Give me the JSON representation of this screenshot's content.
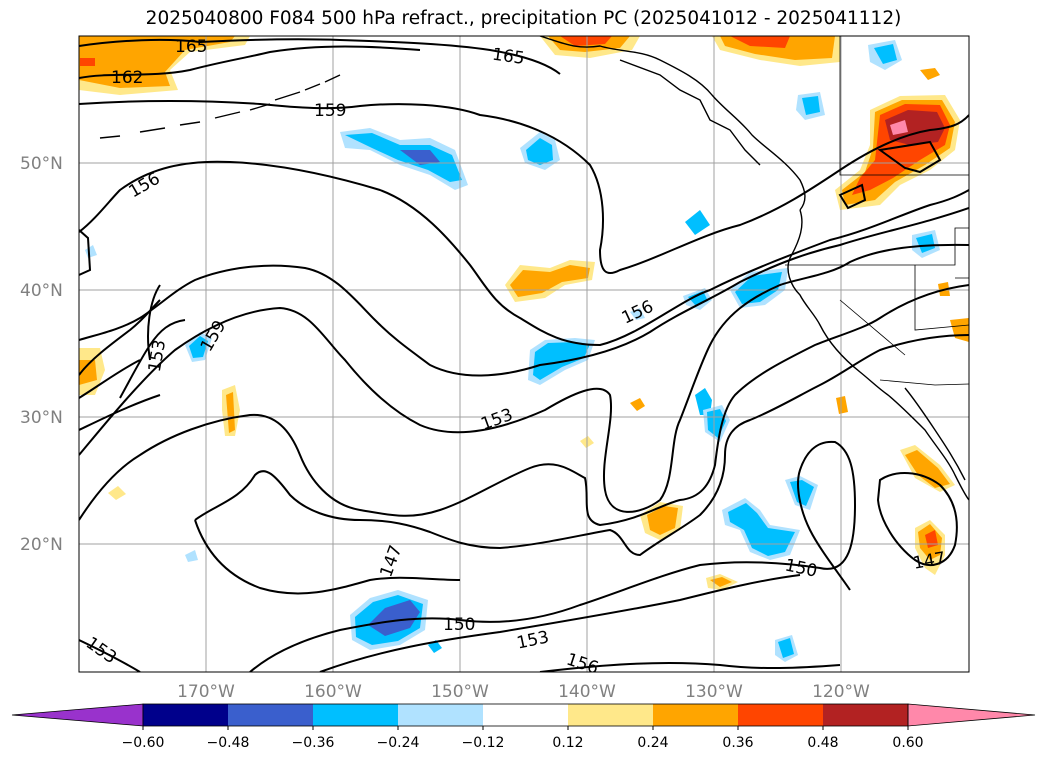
{
  "title": "2025040800 F084 500 hPa refract., precipitation PC (2025041012 - 2025041112)",
  "lat_ticks": [
    "20°N",
    "30°N",
    "40°N",
    "50°N"
  ],
  "lon_ticks": [
    "170°W",
    "160°W",
    "150°W",
    "140°W",
    "130°W",
    "120°W"
  ],
  "colorbar": {
    "ticks": [
      "−0.60",
      "−0.48",
      "−0.36",
      "−0.24",
      "−0.12",
      "0.12",
      "0.24",
      "0.36",
      "0.48",
      "0.60"
    ],
    "colors": [
      "#9932cc",
      "#00008b",
      "#3a5fcd",
      "#00bfff",
      "#b0e2ff",
      "#ffffff",
      "#ffe88a",
      "#ffa500",
      "#ff4500",
      "#b22222",
      "#ff88aa"
    ]
  },
  "contour_labels": [
    "165",
    "165",
    "162",
    "159",
    "156",
    "159",
    "153",
    "156",
    "153",
    "147",
    "150",
    "153",
    "150",
    "147",
    "153",
    "156"
  ]
}
